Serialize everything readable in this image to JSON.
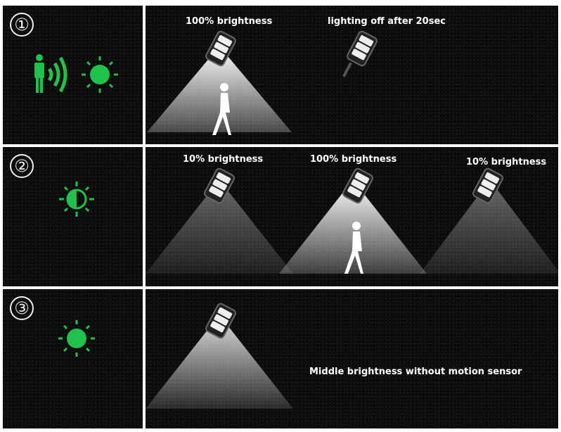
{
  "accent_color": "#1fc24a",
  "rows": [
    {
      "number": "①",
      "icons": [
        "person-motion-icon",
        "sun-full-icon"
      ],
      "labels": [
        "100% brightness",
        "lighting off after 20sec"
      ]
    },
    {
      "number": "②",
      "icons": [
        "sun-half-icon"
      ],
      "labels": [
        "10% brightness",
        "100% brightness",
        "10% brightness"
      ]
    },
    {
      "number": "③",
      "icons": [
        "sun-full-icon"
      ],
      "labels": [
        "Middle brightness without motion sensor"
      ]
    }
  ]
}
